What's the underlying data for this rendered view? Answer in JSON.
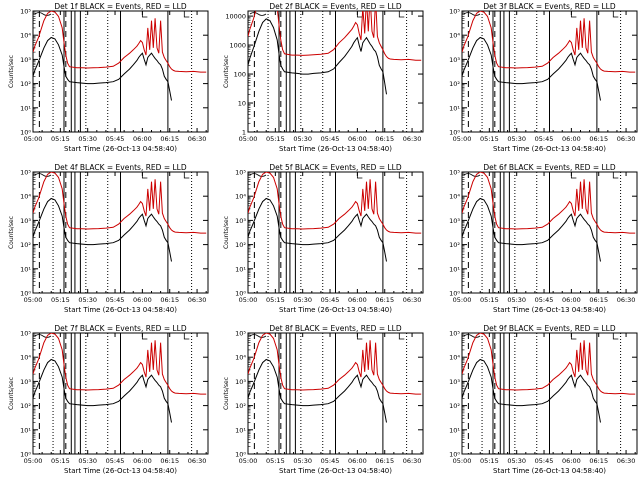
{
  "chart_data": [
    {
      "type": "line",
      "title": "Det 1f BLACK = Events, RED = LLD",
      "xlabel": "Start Time (26-Oct-13 04:58:40)",
      "ylabel": "Counts/sec",
      "scale": "log",
      "y_ticks": [
        "10⁰",
        "10¹",
        "10²",
        "10³",
        "10⁴",
        "10⁵"
      ],
      "ylim": [
        1,
        100000
      ]
    },
    {
      "type": "line",
      "title": "Det 2f BLACK = Events, RED = LLD",
      "xlabel": "Start Time (26-Oct-13 04:58:40)",
      "ylabel": "Counts/sec",
      "scale": "log",
      "y_ticks": [
        "1",
        "10",
        "100",
        "1000",
        "10000"
      ],
      "ylim": [
        1,
        15000
      ]
    },
    {
      "type": "line",
      "title": "Det 3f BLACK = Events, RED = LLD",
      "xlabel": "Start Time (26-Oct-13 04:58:40)",
      "ylabel": "",
      "scale": "log",
      "y_ticks": [
        "10⁰",
        "10¹",
        "10²",
        "10³",
        "10⁴",
        "10⁵"
      ],
      "ylim": [
        1,
        100000
      ]
    },
    {
      "type": "line",
      "title": "Det 4f BLACK = Events, RED = LLD",
      "xlabel": "Start Time (26-Oct-13 04:58:40)",
      "ylabel": "Counts/sec",
      "scale": "log",
      "y_ticks": [
        "10⁰",
        "10¹",
        "10²",
        "10³",
        "10⁴",
        "10⁵"
      ],
      "ylim": [
        1,
        100000
      ]
    },
    {
      "type": "line",
      "title": "Det 5f BLACK = Events, RED = LLD",
      "xlabel": "Start Time (26-Oct-13 04:58:40)",
      "ylabel": "Counts/sec",
      "scale": "log",
      "y_ticks": [
        "10⁰",
        "10¹",
        "10²",
        "10³",
        "10⁴",
        "10⁵"
      ],
      "ylim": [
        1,
        100000
      ]
    },
    {
      "type": "line",
      "title": "Det 6f BLACK = Events, RED = LLD",
      "xlabel": "Start Time (26-Oct-13 04:58:40)",
      "ylabel": "",
      "scale": "log",
      "y_ticks": [
        "10⁰",
        "10¹",
        "10²",
        "10³",
        "10⁴",
        "10⁵"
      ],
      "ylim": [
        1,
        100000
      ]
    },
    {
      "type": "line",
      "title": "Det 7f BLACK = Events, RED = LLD",
      "xlabel": "Start Time (26-Oct-13 04:58:40)",
      "ylabel": "Counts/sec",
      "scale": "log",
      "y_ticks": [
        "10⁰",
        "10¹",
        "10²",
        "10³",
        "10⁴",
        "10⁵"
      ],
      "ylim": [
        1,
        100000
      ]
    },
    {
      "type": "line",
      "title": "Det 8f BLACK = Events, RED = LLD",
      "xlabel": "Start Time (26-Oct-13 04:58:40)",
      "ylabel": "Counts/sec",
      "scale": "log",
      "y_ticks": [
        "10⁰",
        "10¹",
        "10²",
        "10³",
        "10⁴",
        "10⁵"
      ],
      "ylim": [
        1,
        100000
      ]
    },
    {
      "type": "line",
      "title": "Det 9f BLACK = Events, RED = LLD",
      "xlabel": "Start Time (26-Oct-13 04:58:40)",
      "ylabel": "",
      "scale": "log",
      "y_ticks": [
        "10⁰",
        "10¹",
        "10²",
        "10³",
        "10⁴",
        "10⁵"
      ],
      "ylim": [
        1,
        100000
      ]
    }
  ],
  "shared": {
    "x_ticks": [
      "05:00",
      "05:15",
      "05:30",
      "05:45",
      "06:00",
      "06:15",
      "06:30"
    ],
    "x_tick_minutes": [
      0,
      15,
      30,
      45,
      60,
      75,
      90
    ],
    "xlim_minutes": [
      0,
      96
    ],
    "colors": {
      "events": "#000000",
      "lld": "#cc0000",
      "axes": "#000000"
    },
    "events_series": {
      "name": "Events",
      "x": [
        0,
        1,
        3,
        6,
        8,
        10,
        12,
        14,
        16,
        17,
        18,
        19,
        20,
        24,
        27,
        30,
        33,
        36,
        40,
        44,
        47,
        50,
        53,
        55,
        57,
        58,
        59,
        60,
        61,
        62,
        63,
        64,
        65,
        66,
        67,
        68,
        69,
        70,
        71,
        72,
        73,
        74,
        75,
        76
      ],
      "y": [
        200,
        350,
        800,
        3000,
        6000,
        8000,
        7000,
        4000,
        1500,
        500,
        200,
        150,
        120,
        110,
        105,
        100,
        100,
        105,
        110,
        120,
        150,
        250,
        400,
        600,
        900,
        1200,
        1500,
        1800,
        1000,
        600,
        1200,
        1500,
        1800,
        1400,
        1100,
        900,
        700,
        600,
        400,
        200,
        150,
        120,
        50,
        20
      ]
    },
    "lld_series": {
      "name": "LLD",
      "x": [
        0,
        1,
        3,
        6,
        8,
        10,
        12,
        14,
        16,
        17,
        18,
        19,
        20,
        24,
        27,
        30,
        33,
        36,
        40,
        44,
        47,
        50,
        53,
        55,
        57,
        58,
        59,
        60,
        61,
        62,
        63,
        64,
        65,
        66,
        67,
        68,
        69,
        70,
        71,
        72,
        73,
        74,
        75,
        76,
        77,
        78,
        80,
        84,
        88,
        92,
        95
      ],
      "y": [
        2000,
        3500,
        8000,
        40000,
        80000,
        100000,
        90000,
        60000,
        20000,
        5000,
        1500,
        700,
        500,
        450,
        450,
        440,
        450,
        460,
        480,
        520,
        700,
        1200,
        1800,
        2500,
        3500,
        4500,
        6000,
        5000,
        2500,
        1500,
        20000,
        2500,
        40000,
        3000,
        50000,
        3000,
        1800,
        40000,
        2000,
        1200,
        900,
        700,
        500,
        400,
        350,
        330,
        320,
        310,
        320,
        300,
        300
      ]
    },
    "event_lines_minutes": [
      17,
      21,
      23,
      26,
      48,
      74
    ],
    "dashed_lines_minutes": [
      3.5,
      18
    ],
    "dotted_lines_minutes": [
      11,
      29,
      41,
      87
    ],
    "bracket_ticks_minutes": [
      60,
      83
    ]
  }
}
